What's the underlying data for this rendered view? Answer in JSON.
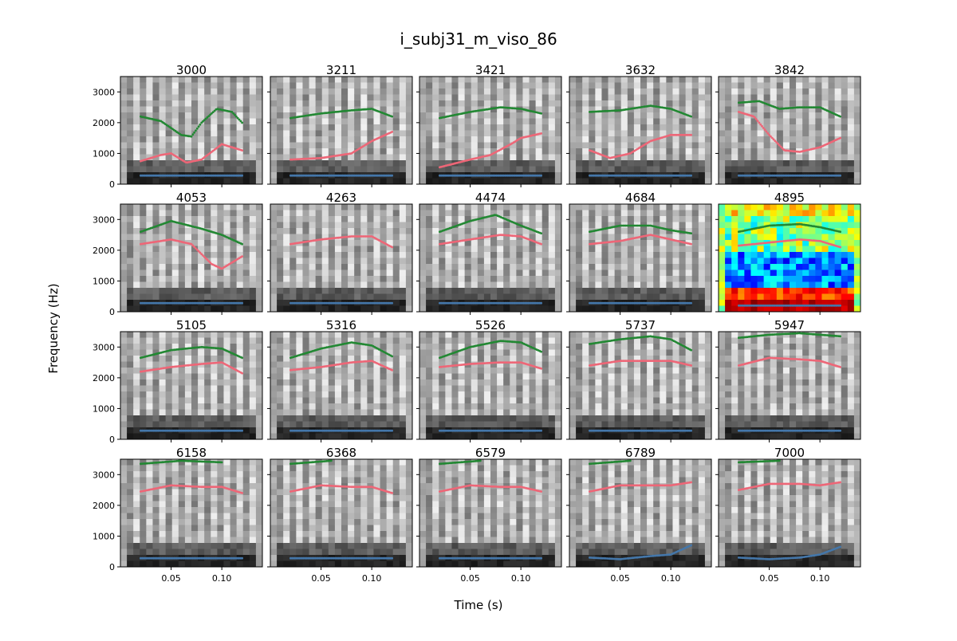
{
  "figure": {
    "title": "i_subj31_m_viso_86",
    "xlabel": "Time (s)",
    "ylabel": "Frequency (Hz)"
  },
  "colors": {
    "f1": "#4477aa",
    "f2": "#ee6677",
    "f3": "#228833",
    "cmap_default": "gray",
    "cmap_highlight": "jet"
  },
  "chart_data": {
    "type": "scatter",
    "grid": false,
    "rows": 4,
    "cols": 5,
    "xlim": [
      0.0,
      0.14
    ],
    "ylim": [
      0,
      3500
    ],
    "xticks": [
      0.05,
      0.1
    ],
    "xtick_labels": [
      "0.05",
      "0.10"
    ],
    "yticks": [
      0,
      1000,
      2000,
      3000
    ],
    "ytick_labels": [
      "0",
      "1000",
      "2000",
      "3000"
    ],
    "time_range": [
      0.02,
      0.12
    ],
    "panels": [
      {
        "title": "3000",
        "cmap": "gray",
        "f1": [
          [
            0.02,
            280
          ],
          [
            0.12,
            280
          ]
        ],
        "f2": [
          [
            0.02,
            750
          ],
          [
            0.04,
            950
          ],
          [
            0.05,
            1000
          ],
          [
            0.065,
            700
          ],
          [
            0.08,
            800
          ],
          [
            0.1,
            1300
          ],
          [
            0.12,
            1100
          ]
        ],
        "f3": [
          [
            0.02,
            2200
          ],
          [
            0.04,
            2050
          ],
          [
            0.06,
            1600
          ],
          [
            0.07,
            1550
          ],
          [
            0.08,
            2000
          ],
          [
            0.095,
            2450
          ],
          [
            0.11,
            2350
          ],
          [
            0.12,
            2000
          ]
        ]
      },
      {
        "title": "3211",
        "cmap": "gray",
        "f1": [
          [
            0.02,
            280
          ],
          [
            0.12,
            280
          ]
        ],
        "f2": [
          [
            0.02,
            800
          ],
          [
            0.05,
            850
          ],
          [
            0.08,
            1000
          ],
          [
            0.1,
            1400
          ],
          [
            0.12,
            1700
          ]
        ],
        "f3": [
          [
            0.02,
            2150
          ],
          [
            0.05,
            2300
          ],
          [
            0.08,
            2400
          ],
          [
            0.1,
            2450
          ],
          [
            0.12,
            2200
          ]
        ]
      },
      {
        "title": "3421",
        "cmap": "gray",
        "f1": [
          [
            0.02,
            280
          ],
          [
            0.12,
            280
          ]
        ],
        "f2": [
          [
            0.02,
            550
          ],
          [
            0.05,
            800
          ],
          [
            0.07,
            950
          ],
          [
            0.09,
            1300
          ],
          [
            0.1,
            1500
          ],
          [
            0.12,
            1650
          ]
        ],
        "f3": [
          [
            0.02,
            2150
          ],
          [
            0.05,
            2350
          ],
          [
            0.08,
            2500
          ],
          [
            0.1,
            2450
          ],
          [
            0.12,
            2300
          ]
        ]
      },
      {
        "title": "3632",
        "cmap": "gray",
        "f1": [
          [
            0.02,
            280
          ],
          [
            0.12,
            280
          ]
        ],
        "f2": [
          [
            0.02,
            1100
          ],
          [
            0.04,
            850
          ],
          [
            0.06,
            1000
          ],
          [
            0.08,
            1400
          ],
          [
            0.1,
            1600
          ],
          [
            0.12,
            1600
          ]
        ],
        "f3": [
          [
            0.02,
            2350
          ],
          [
            0.05,
            2400
          ],
          [
            0.08,
            2550
          ],
          [
            0.1,
            2450
          ],
          [
            0.12,
            2200
          ]
        ]
      },
      {
        "title": "3842",
        "cmap": "gray",
        "f1": [
          [
            0.02,
            280
          ],
          [
            0.12,
            280
          ]
        ],
        "f2": [
          [
            0.02,
            2350
          ],
          [
            0.035,
            2200
          ],
          [
            0.05,
            1600
          ],
          [
            0.065,
            1100
          ],
          [
            0.08,
            1050
          ],
          [
            0.1,
            1200
          ],
          [
            0.12,
            1500
          ]
        ],
        "f3": [
          [
            0.02,
            2650
          ],
          [
            0.04,
            2700
          ],
          [
            0.06,
            2450
          ],
          [
            0.08,
            2500
          ],
          [
            0.1,
            2500
          ],
          [
            0.12,
            2200
          ]
        ]
      },
      {
        "title": "4053",
        "cmap": "gray",
        "f1": [
          [
            0.02,
            280
          ],
          [
            0.12,
            280
          ]
        ],
        "f2": [
          [
            0.02,
            2200
          ],
          [
            0.05,
            2350
          ],
          [
            0.07,
            2200
          ],
          [
            0.09,
            1550
          ],
          [
            0.1,
            1400
          ],
          [
            0.12,
            1800
          ]
        ],
        "f3": [
          [
            0.02,
            2600
          ],
          [
            0.05,
            2950
          ],
          [
            0.08,
            2700
          ],
          [
            0.1,
            2500
          ],
          [
            0.12,
            2200
          ]
        ]
      },
      {
        "title": "4263",
        "cmap": "gray",
        "f1": [
          [
            0.02,
            280
          ],
          [
            0.12,
            280
          ]
        ],
        "f2": [
          [
            0.02,
            2200
          ],
          [
            0.05,
            2350
          ],
          [
            0.08,
            2450
          ],
          [
            0.1,
            2450
          ],
          [
            0.12,
            2100
          ]
        ]
      },
      {
        "title": "4474",
        "cmap": "gray",
        "f1": [
          [
            0.02,
            280
          ],
          [
            0.12,
            280
          ]
        ],
        "f2": [
          [
            0.02,
            2200
          ],
          [
            0.05,
            2350
          ],
          [
            0.08,
            2500
          ],
          [
            0.1,
            2450
          ],
          [
            0.12,
            2200
          ]
        ],
        "f3": [
          [
            0.02,
            2600
          ],
          [
            0.05,
            2950
          ],
          [
            0.075,
            3150
          ],
          [
            0.1,
            2800
          ],
          [
            0.12,
            2550
          ]
        ]
      },
      {
        "title": "4684",
        "cmap": "gray",
        "f1": [
          [
            0.02,
            280
          ],
          [
            0.12,
            280
          ]
        ],
        "f2": [
          [
            0.02,
            2200
          ],
          [
            0.05,
            2300
          ],
          [
            0.08,
            2500
          ],
          [
            0.1,
            2350
          ],
          [
            0.12,
            2200
          ]
        ],
        "f3": [
          [
            0.02,
            2600
          ],
          [
            0.05,
            2800
          ],
          [
            0.08,
            2800
          ],
          [
            0.1,
            2650
          ],
          [
            0.12,
            2550
          ]
        ]
      },
      {
        "title": "4895",
        "cmap": "jet",
        "f1": [
          [
            0.02,
            200
          ],
          [
            0.12,
            200
          ]
        ],
        "f2": [
          [
            0.02,
            2150
          ],
          [
            0.05,
            2250
          ],
          [
            0.08,
            2350
          ],
          [
            0.1,
            2300
          ],
          [
            0.12,
            2100
          ]
        ],
        "f3": [
          [
            0.02,
            2600
          ],
          [
            0.05,
            2800
          ],
          [
            0.08,
            2850
          ],
          [
            0.1,
            2750
          ],
          [
            0.12,
            2600
          ]
        ]
      },
      {
        "title": "5105",
        "cmap": "gray",
        "f1": [
          [
            0.02,
            280
          ],
          [
            0.12,
            280
          ]
        ],
        "f2": [
          [
            0.02,
            2200
          ],
          [
            0.05,
            2350
          ],
          [
            0.08,
            2450
          ],
          [
            0.1,
            2500
          ],
          [
            0.12,
            2150
          ]
        ],
        "f3": [
          [
            0.02,
            2650
          ],
          [
            0.05,
            2900
          ],
          [
            0.08,
            3000
          ],
          [
            0.1,
            2950
          ],
          [
            0.12,
            2650
          ]
        ]
      },
      {
        "title": "5316",
        "cmap": "gray",
        "f1": [
          [
            0.02,
            280
          ],
          [
            0.12,
            280
          ]
        ],
        "f2": [
          [
            0.02,
            2250
          ],
          [
            0.05,
            2350
          ],
          [
            0.08,
            2500
          ],
          [
            0.1,
            2550
          ],
          [
            0.12,
            2250
          ]
        ],
        "f3": [
          [
            0.02,
            2650
          ],
          [
            0.05,
            2950
          ],
          [
            0.08,
            3150
          ],
          [
            0.1,
            3050
          ],
          [
            0.12,
            2700
          ]
        ]
      },
      {
        "title": "5526",
        "cmap": "gray",
        "f1": [
          [
            0.02,
            280
          ],
          [
            0.12,
            280
          ]
        ],
        "f2": [
          [
            0.02,
            2350
          ],
          [
            0.05,
            2450
          ],
          [
            0.08,
            2500
          ],
          [
            0.1,
            2500
          ],
          [
            0.12,
            2300
          ]
        ],
        "f3": [
          [
            0.02,
            2650
          ],
          [
            0.05,
            3000
          ],
          [
            0.08,
            3200
          ],
          [
            0.1,
            3150
          ],
          [
            0.12,
            2850
          ]
        ]
      },
      {
        "title": "5737",
        "cmap": "gray",
        "f1": [
          [
            0.02,
            280
          ],
          [
            0.12,
            280
          ]
        ],
        "f2": [
          [
            0.02,
            2400
          ],
          [
            0.05,
            2550
          ],
          [
            0.08,
            2550
          ],
          [
            0.1,
            2550
          ],
          [
            0.12,
            2400
          ]
        ],
        "f3": [
          [
            0.02,
            3100
          ],
          [
            0.05,
            3250
          ],
          [
            0.08,
            3350
          ],
          [
            0.1,
            3250
          ],
          [
            0.12,
            2900
          ]
        ]
      },
      {
        "title": "5947",
        "cmap": "gray",
        "f1": [
          [
            0.02,
            280
          ],
          [
            0.12,
            280
          ]
        ],
        "f2": [
          [
            0.02,
            2400
          ],
          [
            0.05,
            2650
          ],
          [
            0.08,
            2600
          ],
          [
            0.1,
            2550
          ],
          [
            0.12,
            2350
          ]
        ],
        "f3": [
          [
            0.02,
            3300
          ],
          [
            0.05,
            3400
          ],
          [
            0.08,
            3450
          ],
          [
            0.1,
            3400
          ],
          [
            0.12,
            3350
          ]
        ]
      },
      {
        "title": "6158",
        "cmap": "gray",
        "f1": [
          [
            0.02,
            280
          ],
          [
            0.12,
            280
          ]
        ],
        "f2": [
          [
            0.02,
            2450
          ],
          [
            0.05,
            2650
          ],
          [
            0.08,
            2600
          ],
          [
            0.1,
            2600
          ],
          [
            0.12,
            2400
          ]
        ],
        "f3": [
          [
            0.02,
            3350
          ],
          [
            0.06,
            3450
          ],
          [
            0.1,
            3400
          ]
        ]
      },
      {
        "title": "6368",
        "cmap": "gray",
        "f1": [
          [
            0.02,
            280
          ],
          [
            0.12,
            280
          ]
        ],
        "f2": [
          [
            0.02,
            2450
          ],
          [
            0.05,
            2650
          ],
          [
            0.08,
            2600
          ],
          [
            0.1,
            2600
          ],
          [
            0.12,
            2400
          ]
        ],
        "f3": [
          [
            0.02,
            3350
          ],
          [
            0.06,
            3450
          ]
        ]
      },
      {
        "title": "6579",
        "cmap": "gray",
        "f1": [
          [
            0.02,
            280
          ],
          [
            0.12,
            280
          ]
        ],
        "f2": [
          [
            0.02,
            2450
          ],
          [
            0.05,
            2650
          ],
          [
            0.08,
            2600
          ],
          [
            0.1,
            2600
          ],
          [
            0.12,
            2450
          ]
        ],
        "f3": [
          [
            0.02,
            3350
          ],
          [
            0.06,
            3450
          ]
        ]
      },
      {
        "title": "6789",
        "cmap": "gray",
        "f1": [
          [
            0.02,
            300
          ],
          [
            0.05,
            250
          ],
          [
            0.08,
            350
          ],
          [
            0.1,
            400
          ],
          [
            0.12,
            700
          ]
        ],
        "f2": [
          [
            0.02,
            2450
          ],
          [
            0.05,
            2650
          ],
          [
            0.08,
            2650
          ],
          [
            0.1,
            2650
          ],
          [
            0.12,
            2750
          ]
        ],
        "f3": [
          [
            0.02,
            3350
          ],
          [
            0.06,
            3450
          ]
        ]
      },
      {
        "title": "7000",
        "cmap": "gray",
        "f1": [
          [
            0.02,
            300
          ],
          [
            0.05,
            250
          ],
          [
            0.08,
            300
          ],
          [
            0.1,
            400
          ],
          [
            0.12,
            650
          ]
        ],
        "f2": [
          [
            0.02,
            2500
          ],
          [
            0.05,
            2700
          ],
          [
            0.08,
            2700
          ],
          [
            0.1,
            2650
          ],
          [
            0.12,
            2750
          ]
        ],
        "f3": [
          [
            0.02,
            3400
          ],
          [
            0.06,
            3450
          ]
        ]
      }
    ]
  }
}
